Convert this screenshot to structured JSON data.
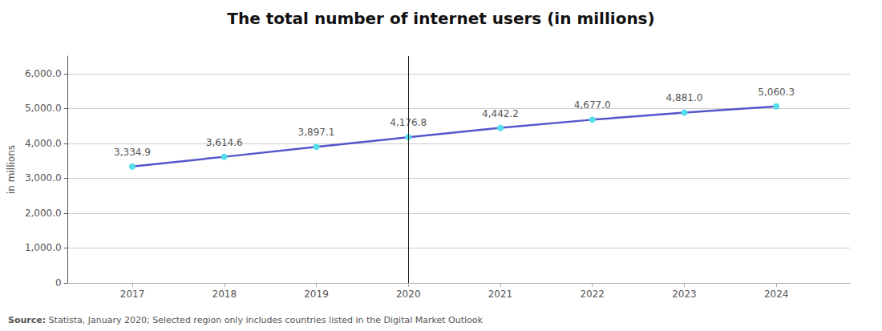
{
  "chart_data": {
    "type": "line",
    "title": "The total number of internet users (in millions)",
    "x": [
      2017,
      2018,
      2019,
      2020,
      2021,
      2022,
      2023,
      2024
    ],
    "values": [
      3334.9,
      3614.6,
      3897.1,
      4176.8,
      4442.2,
      4677.0,
      4881.0,
      5060.3
    ],
    "value_labels": [
      "3,334.9",
      "3,614.6",
      "3,897.1",
      "4,176.8",
      "4,442.2",
      "4,677.0",
      "4,881.0",
      "5,060.3"
    ],
    "data_labels": true,
    "color": "#5555cc",
    "marker": "circle",
    "marker_color": "#55ddee",
    "ylabel": "in millions",
    "xlim": [
      2016.3,
      2024.8
    ],
    "xticks": [
      2017,
      2018,
      2019,
      2020,
      2021,
      2022,
      2023,
      2024
    ],
    "ylim": [
      0,
      6500
    ],
    "yticks": [
      0,
      {
        "value": 1000,
        "label": "1,000.0"
      },
      {
        "value": 2000,
        "label": "2,000.0"
      },
      {
        "value": 3000,
        "label": "3,000.0"
      },
      {
        "value": 4000,
        "label": "4,000.0"
      },
      {
        "value": 5000,
        "label": "5,000.0"
      },
      {
        "value": 6000,
        "label": "6,000.0"
      }
    ],
    "grid": true,
    "vlines": [
      {
        "x": 2020,
        "color": "#222222"
      }
    ],
    "source_bold": "Source:",
    "source_rest": " Statista, January 2020; Selected region only includes countries listed in the Digital Market Outlook"
  }
}
